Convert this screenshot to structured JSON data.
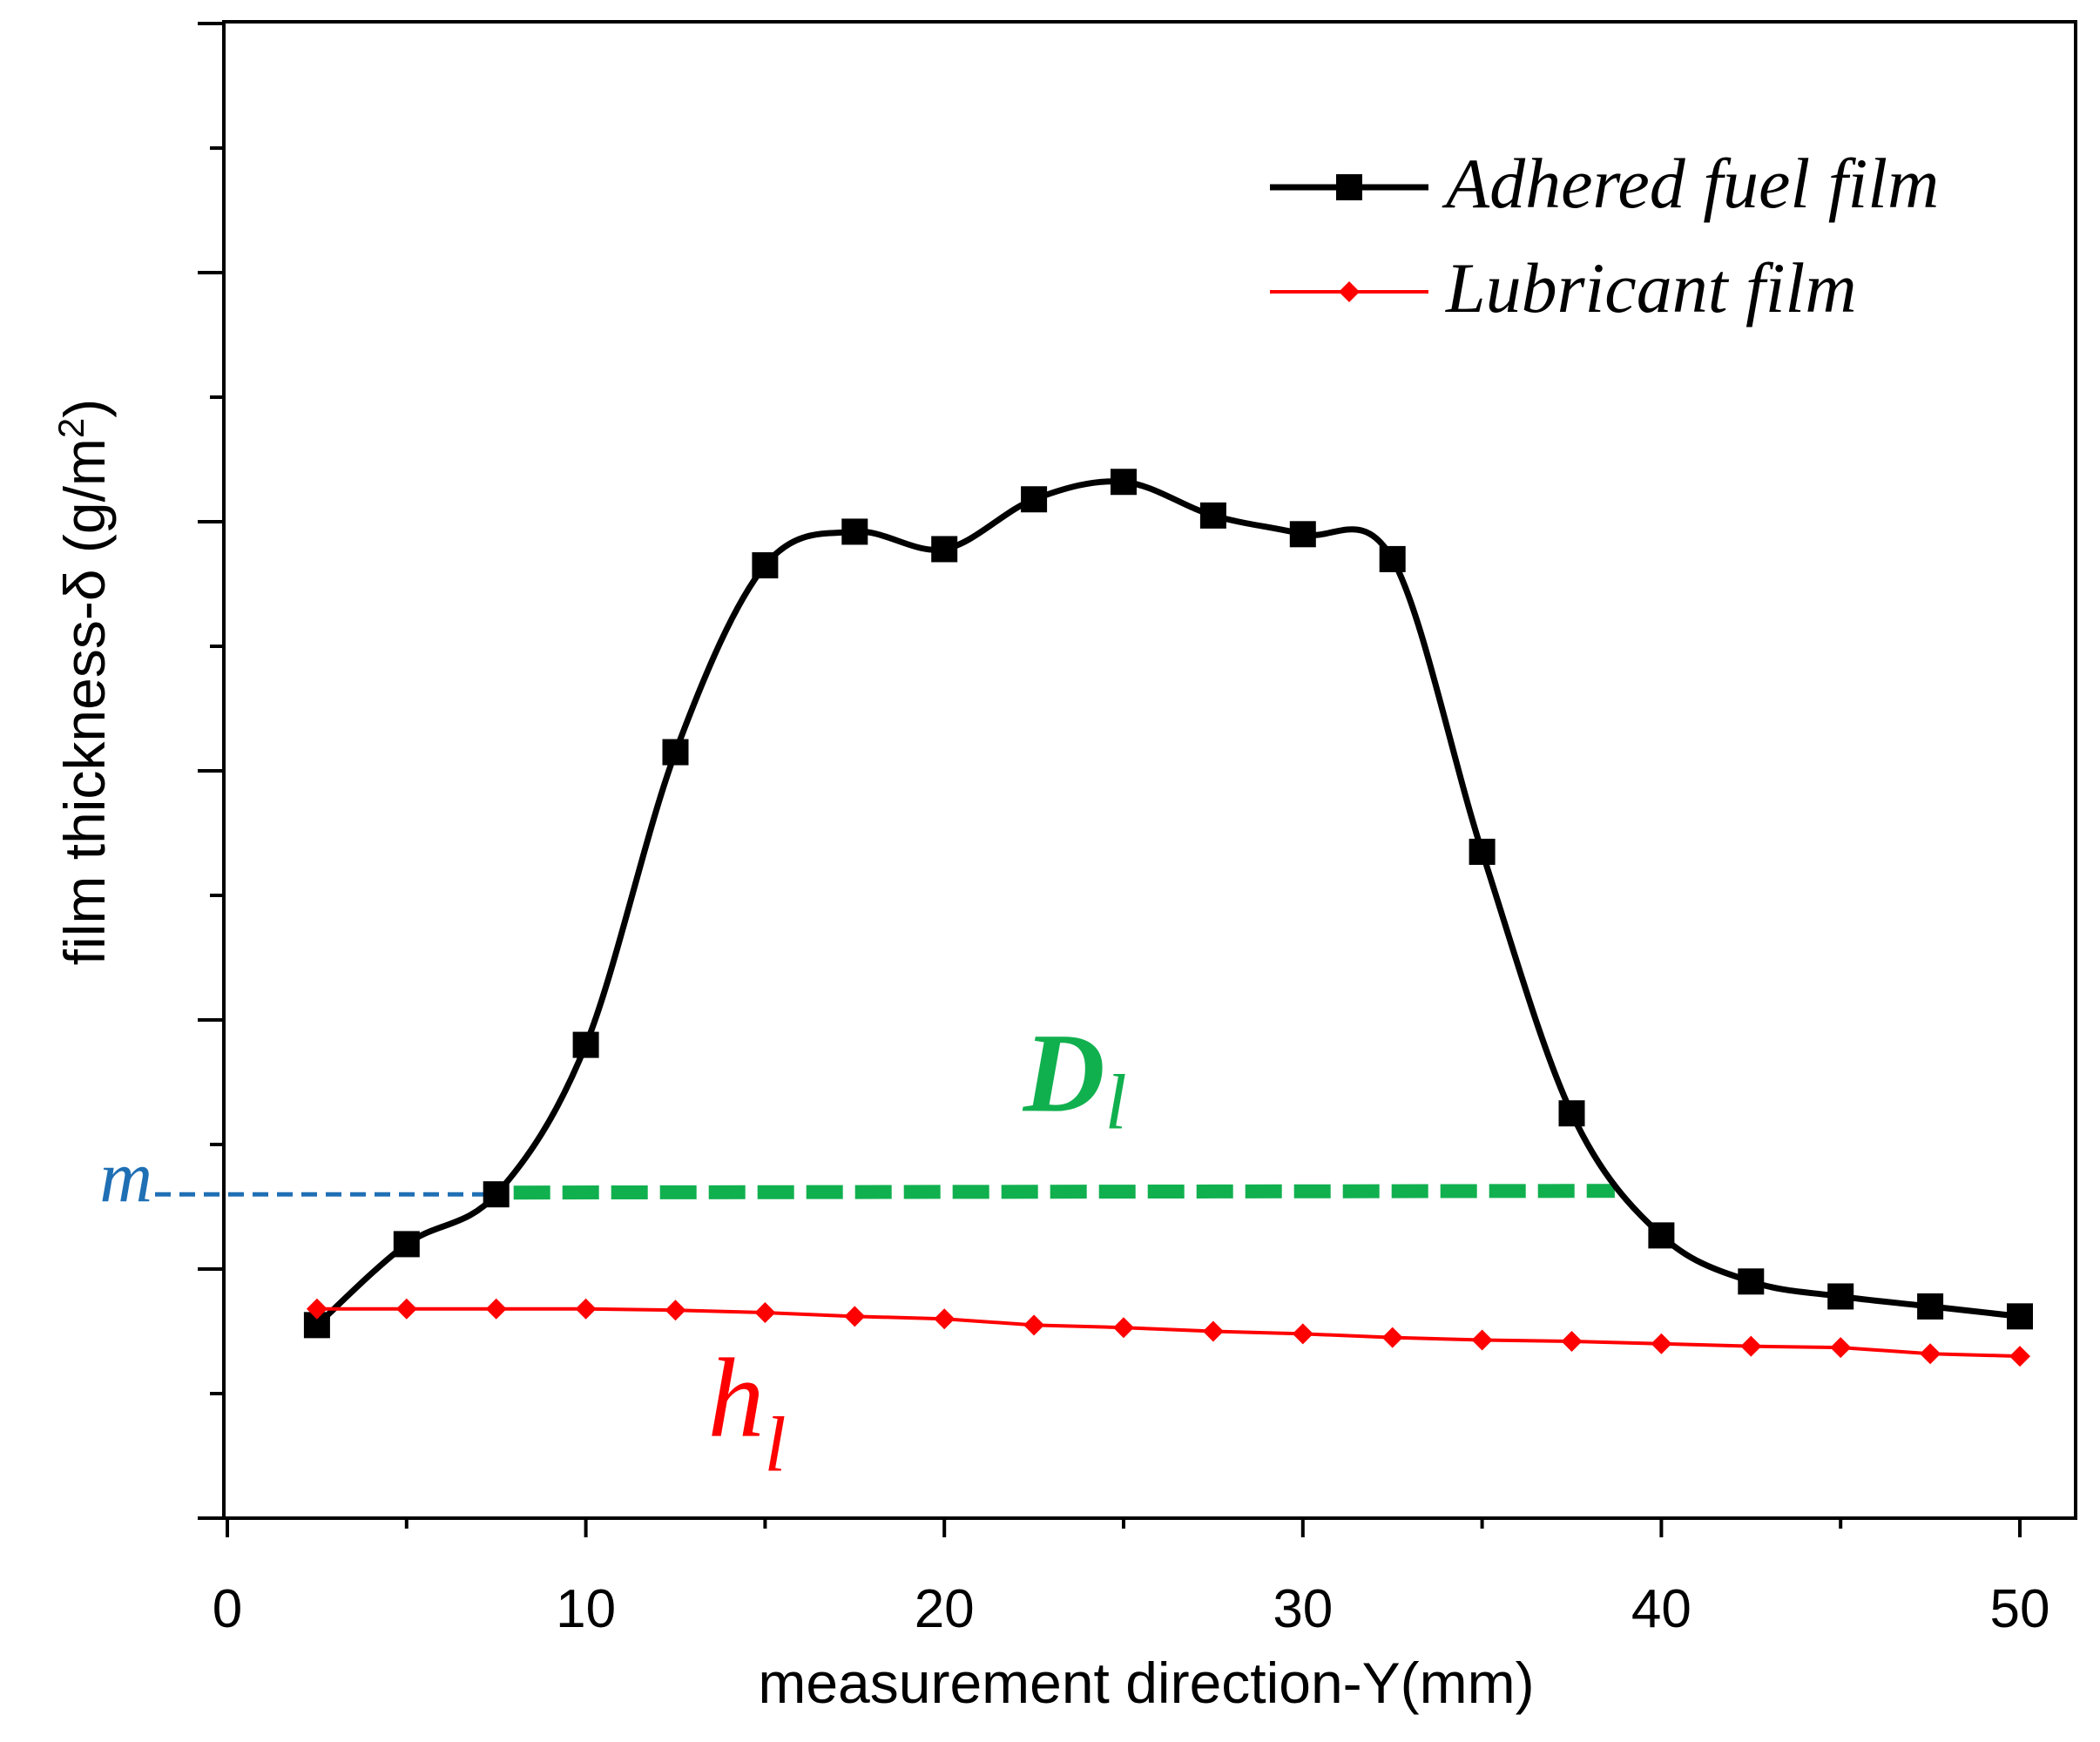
{
  "chart_data": {
    "type": "line",
    "title": "",
    "xlabel": "measurement direction-Y(mm)",
    "ylabel_main": "film thickness-δ (g/m",
    "ylabel_sup": "2",
    "ylabel_close": ")",
    "xlim": [
      0,
      52
    ],
    "xticks": [
      0,
      10,
      20,
      30,
      40,
      50
    ],
    "ylim": [
      0,
      12
    ],
    "y_major_ticks": 6,
    "y_minor_ticks": 12,
    "y_tick_labels": "none",
    "grid": false,
    "legend_position": "top-right",
    "series": [
      {
        "name": "Adhered fuel film",
        "color": "#000000",
        "marker": "square",
        "smooth": true,
        "x": [
          2.5,
          5,
          7.5,
          10,
          12.5,
          15,
          17.5,
          20,
          22.5,
          25,
          27.5,
          30,
          32.5,
          35,
          37.5,
          40,
          42.5,
          45,
          47.5,
          50
        ],
        "y": [
          1.55,
          2.2,
          2.6,
          3.8,
          6.15,
          7.65,
          7.92,
          7.78,
          8.18,
          8.32,
          8.05,
          7.9,
          7.7,
          5.35,
          3.25,
          2.27,
          1.9,
          1.78,
          1.7,
          1.62
        ]
      },
      {
        "name": "Lubricant film",
        "color": "#ff0000",
        "marker": "diamond",
        "smooth": false,
        "x": [
          2.5,
          5,
          7.5,
          10,
          12.5,
          15,
          17.5,
          20,
          22.5,
          25,
          27.5,
          30,
          32.5,
          35,
          37.5,
          40,
          42.5,
          45,
          47.5,
          50
        ],
        "y": [
          1.68,
          1.68,
          1.68,
          1.68,
          1.67,
          1.65,
          1.62,
          1.6,
          1.55,
          1.53,
          1.5,
          1.48,
          1.45,
          1.43,
          1.42,
          1.4,
          1.38,
          1.37,
          1.32,
          1.3
        ]
      }
    ],
    "annotations": {
      "m_label": "m",
      "m_color": "#1f6fb4",
      "m_y": 2.6,
      "m_x_end": 7.5,
      "D_label": "D",
      "D_subscript": "l",
      "D_color": "#11b04f",
      "D_x": [
        7.5,
        38.7
      ],
      "D_y": 2.6,
      "h_label": "h",
      "h_subscript": "l",
      "h_color": "#ff0000"
    }
  }
}
